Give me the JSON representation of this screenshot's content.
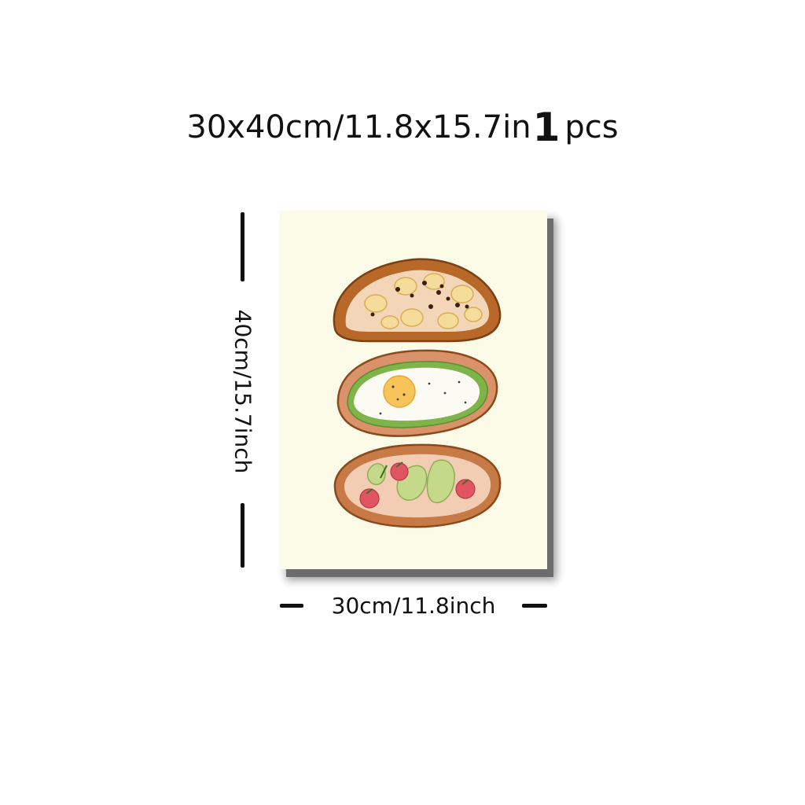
{
  "headline": {
    "size_text": "30x40cm/11.8x15.7in",
    "quantity": "1",
    "unit": "pcs"
  },
  "dimensions": {
    "height_label": "40cm/15.7inch",
    "width_label": "30cm/11.8inch"
  },
  "poster": {
    "background_color": "#fbfbe8",
    "toasts": [
      "banana-toast",
      "egg-avocado-toast",
      "tomato-avocado-toast"
    ]
  }
}
